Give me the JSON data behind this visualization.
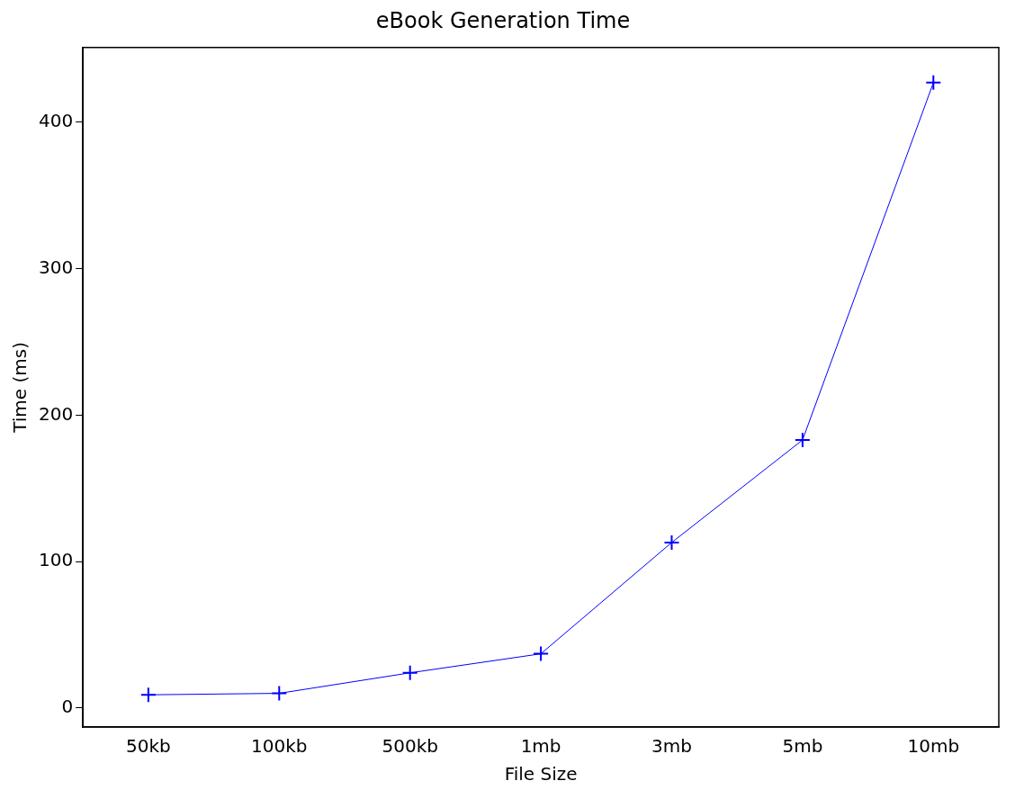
{
  "chart_data": {
    "type": "line",
    "title": "eBook Generation Time",
    "xlabel": "File Size",
    "ylabel": "Time (ms)",
    "categories": [
      "50kb",
      "100kb",
      "500kb",
      "1mb",
      "3mb",
      "5mb",
      "10mb"
    ],
    "series": [
      {
        "color": "#0000ff",
        "values": [
          9,
          10,
          24,
          37,
          113,
          183,
          427
        ]
      }
    ],
    "ylim": [
      -13,
      451
    ],
    "yticks": [
      0,
      100,
      200,
      300,
      400
    ],
    "grid": false,
    "legend": false,
    "marker": "cross",
    "line_style": "solid"
  }
}
